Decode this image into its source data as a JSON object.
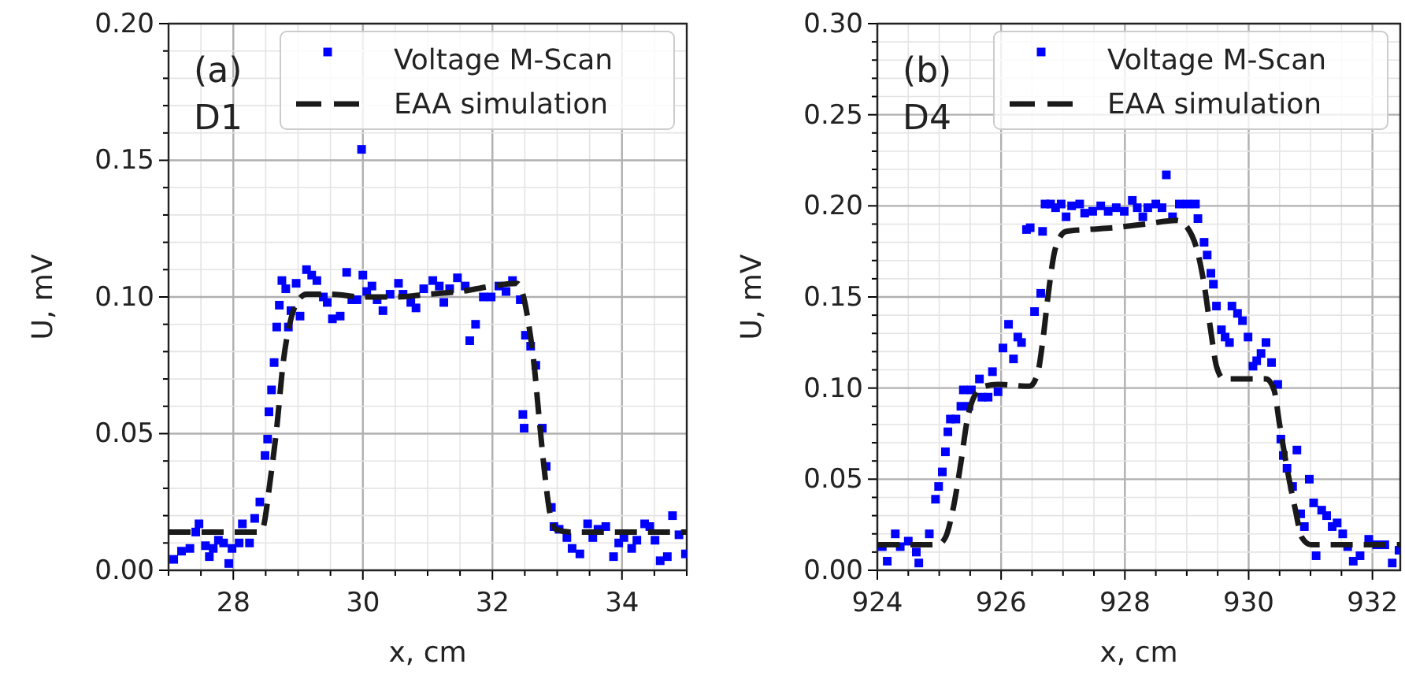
{
  "chart_data": [
    {
      "type": "scatter",
      "xlabel": "x, cm",
      "ylabel": "U, mV",
      "annotations": [
        "(a)",
        "D1"
      ],
      "legend": "top right",
      "grid": true,
      "xlim": [
        27,
        35
      ],
      "ylim": [
        0,
        0.2
      ],
      "xticks": [
        {
          "value": 27,
          "label": null
        },
        {
          "value": 27.5,
          "label": null
        },
        28,
        {
          "value": 28.5,
          "label": null
        },
        {
          "value": 29,
          "label": null
        },
        {
          "value": 29.5,
          "label": null
        },
        30,
        {
          "value": 30.5,
          "label": null
        },
        {
          "value": 31,
          "label": null
        },
        {
          "value": 31.5,
          "label": null
        },
        32,
        {
          "value": 32.5,
          "label": null
        },
        {
          "value": 33,
          "label": null
        },
        {
          "value": 33.5,
          "label": null
        },
        34,
        {
          "value": 34.5,
          "label": null
        },
        {
          "value": 35,
          "label": null
        }
      ],
      "yticks": [
        {
          "value": 0,
          "label": "0.00"
        },
        {
          "value": 0.01,
          "label": null
        },
        {
          "value": 0.02,
          "label": null
        },
        {
          "value": 0.03,
          "label": null
        },
        {
          "value": 0.04,
          "label": null
        },
        0.05,
        {
          "value": 0.06,
          "label": null
        },
        {
          "value": 0.07,
          "label": null
        },
        {
          "value": 0.08,
          "label": null
        },
        {
          "value": 0.09,
          "label": null
        },
        {
          "value": 0.1,
          "label": "0.10"
        },
        {
          "value": 0.11,
          "label": null
        },
        {
          "value": 0.12,
          "label": null
        },
        {
          "value": 0.13,
          "label": null
        },
        {
          "value": 0.14,
          "label": null
        },
        0.15,
        {
          "value": 0.16,
          "label": null
        },
        {
          "value": 0.17,
          "label": null
        },
        {
          "value": 0.18,
          "label": null
        },
        {
          "value": 0.19,
          "label": null
        },
        {
          "value": 0.2,
          "label": "0.20"
        }
      ],
      "series": [
        {
          "name": "Voltage M-Scan",
          "color": "#0000ff",
          "marker": "square",
          "x": [
            27.08,
            27.2,
            27.33,
            27.42,
            27.47,
            27.57,
            27.63,
            27.69,
            27.77,
            27.85,
            27.93,
            27.98,
            28.09,
            28.14,
            28.25,
            28.33,
            28.41,
            28.49,
            28.53,
            28.55,
            28.59,
            28.63,
            28.67,
            28.71,
            28.75,
            28.81,
            28.85,
            28.89,
            28.97,
            29.03,
            29.13,
            29.21,
            29.29,
            29.39,
            29.45,
            29.53,
            29.65,
            29.75,
            29.83,
            29.91,
            29.98,
            30.0,
            30.06,
            30.14,
            30.22,
            30.31,
            30.42,
            30.55,
            30.62,
            30.74,
            30.82,
            30.94,
            31.08,
            31.18,
            31.25,
            31.34,
            31.46,
            31.58,
            31.65,
            31.74,
            31.86,
            31.98,
            32.1,
            32.21,
            32.31,
            32.43,
            32.47,
            32.49,
            32.51,
            32.59,
            32.67,
            32.77,
            32.83,
            32.91,
            32.95,
            33.03,
            33.15,
            33.23,
            33.35,
            33.47,
            33.55,
            33.63,
            33.75,
            33.87,
            33.95,
            34.03,
            34.15,
            34.23,
            34.35,
            34.43,
            34.51,
            34.59,
            34.7,
            34.78,
            34.88,
            34.98
          ],
          "values": [
            0.004,
            0.007,
            0.008,
            0.014,
            0.017,
            0.009,
            0.005,
            0.008,
            0.011,
            0.01,
            0.0025,
            0.008,
            0.01,
            0.017,
            0.01,
            0.019,
            0.025,
            0.042,
            0.048,
            0.058,
            0.066,
            0.076,
            0.089,
            0.097,
            0.106,
            0.103,
            0.089,
            0.095,
            0.105,
            0.093,
            0.11,
            0.108,
            0.106,
            0.1,
            0.098,
            0.092,
            0.093,
            0.109,
            0.099,
            0.099,
            0.154,
            0.108,
            0.102,
            0.104,
            0.099,
            0.095,
            0.101,
            0.105,
            0.101,
            0.098,
            0.096,
            0.103,
            0.106,
            0.104,
            0.098,
            0.103,
            0.107,
            0.104,
            0.084,
            0.09,
            0.1,
            0.1,
            0.104,
            0.102,
            0.106,
            0.099,
            0.057,
            0.052,
            0.086,
            0.082,
            0.075,
            0.052,
            0.038,
            0.023,
            0.016,
            0.015,
            0.012,
            0.008,
            0.006,
            0.017,
            0.012,
            0.015,
            0.016,
            0.005,
            0.01,
            0.012,
            0.008,
            0.011,
            0.017,
            0.016,
            0.011,
            0.0035,
            0.005,
            0.02,
            0.013,
            0.006
          ]
        },
        {
          "name": "EAA simulation",
          "type": "line",
          "color": "#1a1a1a",
          "line_style": "dashed",
          "x": [
            27,
            28.4,
            28.45,
            28.57,
            28.67,
            28.77,
            28.89,
            29.01,
            29.13,
            29.5,
            30,
            30.5,
            31,
            31.5,
            32,
            32.38,
            32.47,
            32.56,
            32.64,
            32.72,
            32.8,
            32.88,
            32.98,
            33.2,
            35
          ],
          "values": [
            0.014,
            0.014,
            0.015,
            0.033,
            0.052,
            0.076,
            0.092,
            0.099,
            0.101,
            0.101,
            0.1,
            0.1,
            0.101,
            0.102,
            0.104,
            0.105,
            0.101,
            0.09,
            0.076,
            0.056,
            0.037,
            0.022,
            0.015,
            0.014,
            0.014
          ]
        }
      ]
    },
    {
      "type": "scatter",
      "xlabel": "x, cm",
      "ylabel": "U, mV",
      "annotations": [
        "(b)",
        "D4"
      ],
      "legend": "top right",
      "grid": true,
      "xlim": [
        924,
        932.45
      ],
      "ylim": [
        0,
        0.3
      ],
      "xticks": [
        924,
        {
          "value": 924.5,
          "label": null
        },
        {
          "value": 925,
          "label": null
        },
        {
          "value": 925.5,
          "label": null
        },
        926,
        {
          "value": 926.5,
          "label": null
        },
        {
          "value": 927,
          "label": null
        },
        {
          "value": 927.5,
          "label": null
        },
        928,
        {
          "value": 928.5,
          "label": null
        },
        {
          "value": 929,
          "label": null
        },
        {
          "value": 929.5,
          "label": null
        },
        930,
        {
          "value": 930.5,
          "label": null
        },
        {
          "value": 931,
          "label": null
        },
        {
          "value": 931.5,
          "label": null
        },
        932
      ],
      "yticks": [
        {
          "value": 0,
          "label": "0.00"
        },
        {
          "value": 0.01,
          "label": null
        },
        {
          "value": 0.02,
          "label": null
        },
        {
          "value": 0.03,
          "label": null
        },
        {
          "value": 0.04,
          "label": null
        },
        0.05,
        {
          "value": 0.06,
          "label": null
        },
        {
          "value": 0.07,
          "label": null
        },
        {
          "value": 0.08,
          "label": null
        },
        {
          "value": 0.09,
          "label": null
        },
        {
          "value": 0.1,
          "label": "0.10"
        },
        {
          "value": 0.11,
          "label": null
        },
        {
          "value": 0.12,
          "label": null
        },
        {
          "value": 0.13,
          "label": null
        },
        {
          "value": 0.14,
          "label": null
        },
        0.15,
        {
          "value": 0.16,
          "label": null
        },
        {
          "value": 0.17,
          "label": null
        },
        {
          "value": 0.18,
          "label": null
        },
        {
          "value": 0.19,
          "label": null
        },
        {
          "value": 0.2,
          "label": "0.20"
        },
        {
          "value": 0.21,
          "label": null
        },
        {
          "value": 0.22,
          "label": null
        },
        {
          "value": 0.23,
          "label": null
        },
        {
          "value": 0.24,
          "label": null
        },
        0.25,
        {
          "value": 0.26,
          "label": null
        },
        {
          "value": 0.27,
          "label": null
        },
        {
          "value": 0.28,
          "label": null
        },
        {
          "value": 0.29,
          "label": null
        },
        {
          "value": 0.3,
          "label": "0.30"
        }
      ],
      "series": [
        {
          "name": "Voltage M-Scan",
          "color": "#0000ff",
          "marker": "square",
          "x": [
            924.08,
            924.16,
            924.29,
            924.37,
            924.5,
            924.63,
            924.67,
            924.84,
            924.94,
            924.99,
            925.05,
            925.1,
            925.14,
            925.18,
            925.27,
            925.35,
            925.39,
            925.48,
            925.52,
            925.65,
            925.69,
            925.79,
            925.86,
            925.95,
            926.03,
            926.12,
            926.2,
            926.27,
            926.33,
            926.41,
            926.47,
            926.54,
            926.64,
            926.67,
            926.71,
            926.8,
            926.88,
            926.97,
            927.05,
            927.14,
            927.27,
            927.35,
            927.48,
            927.61,
            927.73,
            927.86,
            927.99,
            928.12,
            928.2,
            928.29,
            928.37,
            928.5,
            928.6,
            928.67,
            928.77,
            928.88,
            929.01,
            929.14,
            929.18,
            929.28,
            929.33,
            929.39,
            929.43,
            929.48,
            929.56,
            929.62,
            929.69,
            929.73,
            929.82,
            929.9,
            929.99,
            930.07,
            930.13,
            930.2,
            930.28,
            930.37,
            930.47,
            930.52,
            930.56,
            930.62,
            930.71,
            930.78,
            930.84,
            930.9,
            930.98,
            931.05,
            931.09,
            931.18,
            931.26,
            931.35,
            931.43,
            931.52,
            931.6,
            931.69,
            931.8,
            931.94,
            932.07,
            932.2,
            932.32,
            932.43
          ],
          "values": [
            0.013,
            0.005,
            0.02,
            0.013,
            0.016,
            0.01,
            0.004,
            0.02,
            0.039,
            0.046,
            0.054,
            0.065,
            0.076,
            0.083,
            0.083,
            0.09,
            0.099,
            0.09,
            0.099,
            0.105,
            0.095,
            0.095,
            0.109,
            0.098,
            0.122,
            0.135,
            0.116,
            0.128,
            0.125,
            0.187,
            0.188,
            0.142,
            0.152,
            0.186,
            0.201,
            0.201,
            0.199,
            0.201,
            0.194,
            0.2,
            0.201,
            0.196,
            0.197,
            0.2,
            0.197,
            0.199,
            0.197,
            0.203,
            0.199,
            0.194,
            0.199,
            0.201,
            0.199,
            0.217,
            0.194,
            0.201,
            0.201,
            0.201,
            0.193,
            0.18,
            0.173,
            0.163,
            0.157,
            0.145,
            0.132,
            0.128,
            0.125,
            0.145,
            0.141,
            0.137,
            0.128,
            0.112,
            0.115,
            0.119,
            0.125,
            0.114,
            0.102,
            0.072,
            0.063,
            0.056,
            0.046,
            0.066,
            0.031,
            0.024,
            0.05,
            0.037,
            0.008,
            0.033,
            0.03,
            0.024,
            0.026,
            0.02,
            0.013,
            0.005,
            0.008,
            0.017,
            0.014,
            0.014,
            0.004,
            0.011
          ]
        },
        {
          "name": "EAA simulation",
          "type": "line",
          "color": "#1a1a1a",
          "line_style": "dashed",
          "x": [
            924,
            924.8,
            924.97,
            925.1,
            925.22,
            925.35,
            925.45,
            925.56,
            925.73,
            925.95,
            926.46,
            926.59,
            926.67,
            926.76,
            926.88,
            927.05,
            927.39,
            927.82,
            928.33,
            928.84,
            929.01,
            929.18,
            929.28,
            929.39,
            929.48,
            929.6,
            929.86,
            930.28,
            930.41,
            930.5,
            930.62,
            930.75,
            930.86,
            931.01,
            932.45
          ],
          "values": [
            0.014,
            0.014,
            0.014,
            0.018,
            0.033,
            0.059,
            0.082,
            0.095,
            0.101,
            0.102,
            0.101,
            0.108,
            0.125,
            0.151,
            0.177,
            0.186,
            0.187,
            0.188,
            0.19,
            0.192,
            0.188,
            0.174,
            0.157,
            0.131,
            0.112,
            0.105,
            0.105,
            0.105,
            0.099,
            0.08,
            0.056,
            0.034,
            0.018,
            0.014,
            0.014
          ]
        }
      ]
    }
  ]
}
